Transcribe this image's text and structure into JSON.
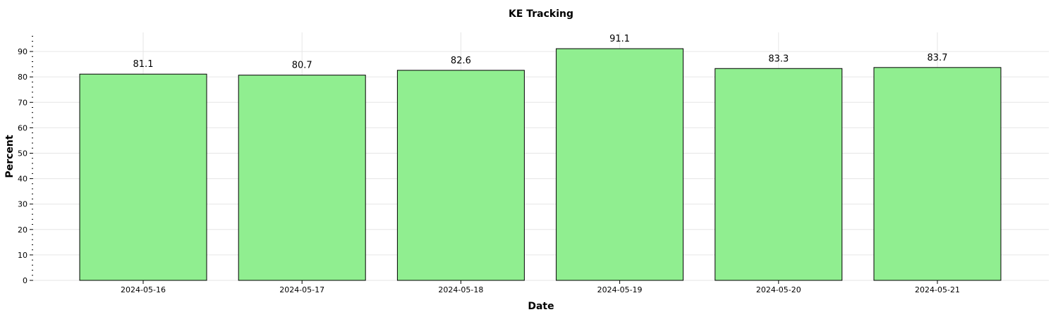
{
  "chart_data": {
    "type": "bar",
    "title": "KE Tracking",
    "xlabel": "Date",
    "ylabel": "Percent",
    "categories": [
      "2024-05-16",
      "2024-05-17",
      "2024-05-18",
      "2024-05-19",
      "2024-05-20",
      "2024-05-21"
    ],
    "values": [
      81.1,
      80.7,
      82.6,
      91.1,
      83.3,
      83.7
    ],
    "data_labels": [
      "81.1",
      "80.7",
      "82.6",
      "91.1",
      "83.3",
      "83.7"
    ],
    "ylim": [
      0,
      97.5
    ],
    "yticks": [
      "0",
      "10",
      "20",
      "30",
      "40",
      "50",
      "60",
      "70",
      "80",
      "90"
    ],
    "grid": true,
    "bar_color": "#90ee90",
    "bar_edge_color": "#000000"
  }
}
